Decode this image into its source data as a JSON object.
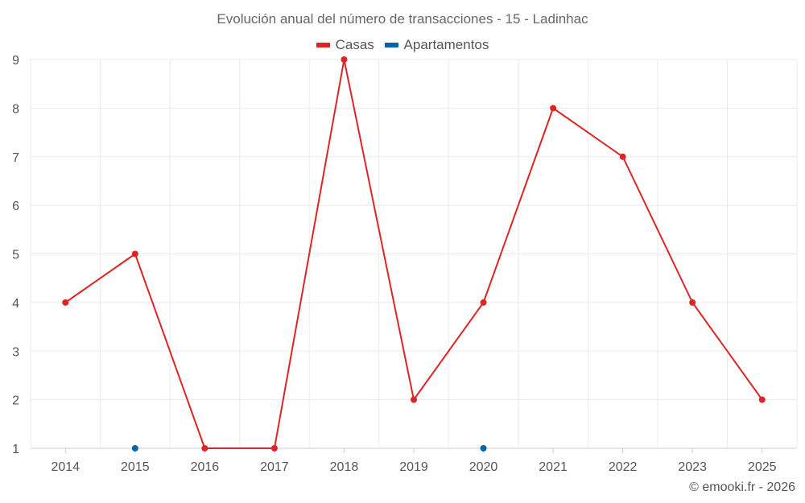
{
  "chart_data": {
    "type": "line",
    "title": "Evolución anual del número de transacciones - 15 - Ladinhac",
    "categories": [
      "2014",
      "2015",
      "2016",
      "2017",
      "2018",
      "2019",
      "2020",
      "2021",
      "2022",
      "2023",
      "2025"
    ],
    "series": [
      {
        "name": "Casas",
        "color": "#dc2626",
        "values": [
          4,
          5,
          1,
          1,
          9,
          2,
          4,
          8,
          7,
          4,
          2
        ]
      },
      {
        "name": "Apartamentos",
        "color": "#0565a6",
        "values": [
          null,
          1,
          null,
          null,
          null,
          null,
          1,
          null,
          null,
          null,
          null
        ]
      }
    ],
    "ylim": [
      1,
      9
    ],
    "yticks": [
      1,
      2,
      3,
      4,
      5,
      6,
      7,
      8,
      9
    ],
    "grid": true,
    "legend_position": "top-center",
    "xlabel": "",
    "ylabel": ""
  },
  "credit": "© emooki.fr - 2026"
}
